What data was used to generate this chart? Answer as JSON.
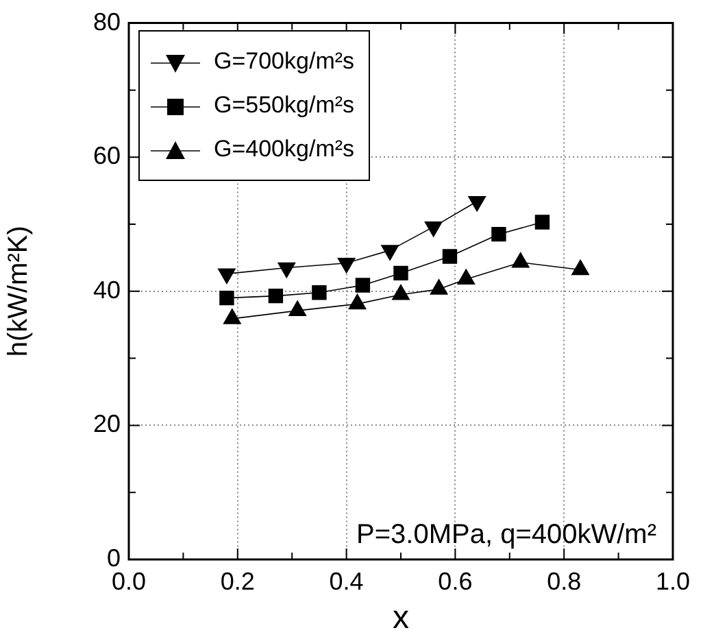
{
  "chart_data": {
    "type": "line",
    "xlabel": "x",
    "ylabel": "h(kW/m²K)",
    "xlim": [
      0,
      1
    ],
    "xticks": [
      {
        "value": 0,
        "label": "0.0"
      },
      {
        "value": 0.1,
        "label": null
      },
      {
        "value": 0.2,
        "label": "0.2"
      },
      {
        "value": 0.3,
        "label": null
      },
      {
        "value": 0.4,
        "label": "0.4"
      },
      {
        "value": 0.5,
        "label": null
      },
      {
        "value": 0.6,
        "label": "0.6"
      },
      {
        "value": 0.7,
        "label": null
      },
      {
        "value": 0.8,
        "label": "0.8"
      },
      {
        "value": 0.9,
        "label": null
      },
      {
        "value": 1,
        "label": "1.0"
      }
    ],
    "ylim": [
      0,
      80
    ],
    "yticks": [
      0,
      {
        "value": 10,
        "label": null
      },
      20,
      {
        "value": 30,
        "label": null
      },
      40,
      {
        "value": 50,
        "label": null
      },
      60,
      {
        "value": 70,
        "label": null
      },
      80
    ],
    "grid": true,
    "legend": "top left",
    "line_style": "solid",
    "series": [
      {
        "name": "G=700kg/m²s",
        "color": "#000000",
        "marker": "triangle-down",
        "x": [
          0.18,
          0.29,
          0.4,
          0.48,
          0.56,
          0.64
        ],
        "values": [
          42.6,
          43.5,
          44.2,
          46.1,
          49.6,
          53.4
        ]
      },
      {
        "name": "G=550kg/m²s",
        "color": "#000000",
        "marker": "square",
        "x": [
          0.18,
          0.27,
          0.35,
          0.43,
          0.5,
          0.59,
          0.68,
          0.76
        ],
        "values": [
          39.0,
          39.3,
          39.8,
          40.9,
          42.7,
          45.2,
          48.5,
          50.3
        ]
      },
      {
        "name": "G=400kg/m²s",
        "color": "#000000",
        "marker": "triangle",
        "x": [
          0.19,
          0.31,
          0.42,
          0.5,
          0.57,
          0.62,
          0.72,
          0.83
        ],
        "values": [
          35.9,
          37.1,
          38.1,
          39.5,
          40.3,
          41.8,
          44.3,
          43.2
        ]
      }
    ],
    "annotations": [
      "P=3.0MPa, q=400kW/m²"
    ]
  }
}
